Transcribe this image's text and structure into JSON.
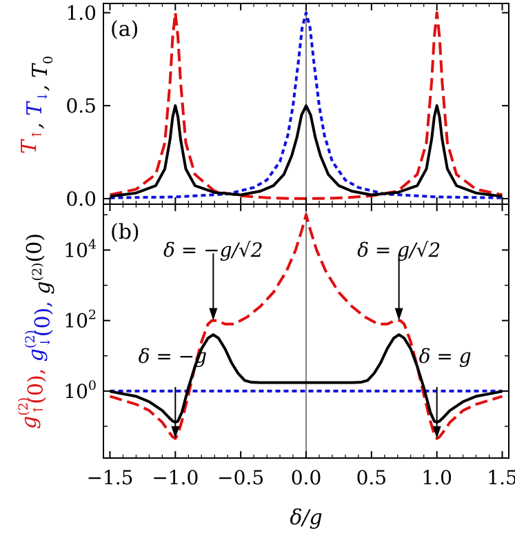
{
  "chart_data": [
    {
      "panel": "a",
      "type": "line",
      "panel_label": "(a)",
      "ylabel_parts": [
        {
          "text": "T",
          "sub": "↑",
          "color": "#e01010"
        },
        {
          "text": ", ",
          "sub": "",
          "color": "#000000"
        },
        {
          "text": "T",
          "sub": "↓",
          "color": "#1010e0"
        },
        {
          "text": ", ",
          "sub": "",
          "color": "#000000"
        },
        {
          "text": "T",
          "sub": "0",
          "color": "#000000"
        }
      ],
      "xlim": [
        -1.55,
        1.55
      ],
      "ylim": [
        -0.03,
        1.05
      ],
      "yscale": "linear",
      "yticks": [
        0.0,
        0.5,
        1.0
      ],
      "ytick_labels": [
        "0.0",
        "0.5",
        "1.0"
      ],
      "series": [
        {
          "color": "#e01010",
          "dash": "dashed",
          "x": [
            -1.5,
            -1.3,
            -1.15,
            -1.08,
            -1.04,
            -1.02,
            -1.0,
            -0.98,
            -0.96,
            -0.92,
            -0.85,
            -0.7,
            -0.5,
            -0.3,
            -0.15,
            0.0,
            0.15,
            0.3,
            0.5,
            0.7,
            0.85,
            0.92,
            0.96,
            0.98,
            1.0,
            1.02,
            1.04,
            1.08,
            1.15,
            1.3,
            1.5
          ],
          "y": [
            0.02,
            0.05,
            0.13,
            0.3,
            0.63,
            0.87,
            1.0,
            0.87,
            0.63,
            0.3,
            0.13,
            0.04,
            0.015,
            0.005,
            0.001,
            0.0,
            0.001,
            0.005,
            0.015,
            0.04,
            0.13,
            0.3,
            0.63,
            0.87,
            1.0,
            0.87,
            0.63,
            0.3,
            0.13,
            0.05,
            0.02
          ]
        },
        {
          "color": "#1010e0",
          "dash": "dotted",
          "x": [
            -1.5,
            -1.0,
            -0.6,
            -0.4,
            -0.3,
            -0.2,
            -0.14,
            -0.1,
            -0.06,
            -0.03,
            0.0,
            0.03,
            0.06,
            0.1,
            0.14,
            0.2,
            0.3,
            0.4,
            0.6,
            1.0,
            1.5
          ],
          "y": [
            0.004,
            0.009,
            0.025,
            0.06,
            0.1,
            0.2,
            0.34,
            0.5,
            0.73,
            0.92,
            1.0,
            0.92,
            0.73,
            0.5,
            0.34,
            0.2,
            0.1,
            0.06,
            0.025,
            0.009,
            0.004
          ]
        },
        {
          "color": "#000000",
          "dash": "solid",
          "x": [
            -1.5,
            -1.3,
            -1.15,
            -1.08,
            -1.04,
            -1.02,
            -1.0,
            -0.98,
            -0.96,
            -0.92,
            -0.85,
            -0.7,
            -0.5,
            -0.35,
            -0.25,
            -0.17,
            -0.11,
            -0.07,
            -0.035,
            0.0,
            0.035,
            0.07,
            0.11,
            0.17,
            0.25,
            0.35,
            0.5,
            0.7,
            0.85,
            0.92,
            0.96,
            0.98,
            1.0,
            1.02,
            1.04,
            1.08,
            1.15,
            1.3,
            1.5
          ],
          "y": [
            0.012,
            0.03,
            0.07,
            0.16,
            0.32,
            0.44,
            0.5,
            0.44,
            0.32,
            0.16,
            0.07,
            0.033,
            0.02,
            0.04,
            0.07,
            0.13,
            0.23,
            0.33,
            0.45,
            0.5,
            0.45,
            0.33,
            0.23,
            0.13,
            0.07,
            0.04,
            0.02,
            0.033,
            0.07,
            0.16,
            0.32,
            0.44,
            0.5,
            0.44,
            0.32,
            0.16,
            0.07,
            0.03,
            0.012
          ]
        }
      ]
    },
    {
      "panel": "b",
      "type": "line",
      "panel_label": "(b)",
      "ylabel_parts": [
        {
          "text": "g",
          "sup": "(2)",
          "sub": "↑",
          "tail": "(0), ",
          "color": "#e01010"
        },
        {
          "text": "g",
          "sup": "(2)",
          "sub": "↓",
          "tail": "(0), ",
          "color": "#1010e0"
        },
        {
          "text": "g",
          "sup": "(2)",
          "sub": "",
          "tail": "(0)",
          "color": "#000000"
        }
      ],
      "xlim": [
        -1.55,
        1.55
      ],
      "ylim_log10": [
        -1.9,
        5.3
      ],
      "yscale": "log",
      "yticks": [
        1,
        100,
        10000
      ],
      "ytick_labels": [
        {
          "base": "10",
          "exp": "0"
        },
        {
          "base": "10",
          "exp": "2"
        },
        {
          "base": "10",
          "exp": "4"
        }
      ],
      "series": [
        {
          "color": "#e01010",
          "dash": "dashed",
          "x": [
            -1.5,
            -1.3,
            -1.2,
            -1.1,
            -1.05,
            -1.02,
            -1.0,
            -0.98,
            -0.95,
            -0.9,
            -0.85,
            -0.8,
            -0.75,
            -0.72,
            -0.68,
            -0.62,
            -0.55,
            -0.45,
            -0.35,
            -0.25,
            -0.15,
            -0.08,
            -0.03,
            0.0,
            0.03,
            0.08,
            0.15,
            0.25,
            0.35,
            0.45,
            0.55,
            0.62,
            0.68,
            0.72,
            0.75,
            0.8,
            0.85,
            0.9,
            0.95,
            0.98,
            1.0,
            1.02,
            1.05,
            1.1,
            1.2,
            1.3,
            1.5
          ],
          "y": [
            0.71,
            0.42,
            0.28,
            0.13,
            0.07,
            0.05,
            0.045,
            0.06,
            0.14,
            0.79,
            5.0,
            25.1,
            79.4,
            100,
            100,
            79.4,
            79.4,
            126,
            251,
            631,
            2512,
            10000,
            39811,
            100000,
            39811,
            10000,
            2512,
            631,
            251,
            126,
            79.4,
            79.4,
            100,
            100,
            79.4,
            25.1,
            5.0,
            0.79,
            0.14,
            0.06,
            0.045,
            0.05,
            0.07,
            0.13,
            0.28,
            0.42,
            0.71
          ]
        },
        {
          "color": "#1010e0",
          "dash": "dotted",
          "x": [
            -1.5,
            1.5
          ],
          "y": [
            1.0,
            1.0
          ]
        },
        {
          "color": "#000000",
          "dash": "solid",
          "x": [
            -1.5,
            -1.3,
            -1.2,
            -1.1,
            -1.05,
            -1.02,
            -1.0,
            -0.98,
            -0.95,
            -0.9,
            -0.85,
            -0.8,
            -0.75,
            -0.71,
            -0.67,
            -0.62,
            -0.57,
            -0.52,
            -0.47,
            -0.42,
            -0.35,
            -0.2,
            0.0,
            0.2,
            0.35,
            0.42,
            0.47,
            0.52,
            0.57,
            0.62,
            0.67,
            0.71,
            0.75,
            0.8,
            0.85,
            0.9,
            0.95,
            0.98,
            1.0,
            1.02,
            1.05,
            1.1,
            1.2,
            1.3,
            1.5
          ],
          "y": [
            0.98,
            0.71,
            0.5,
            0.28,
            0.18,
            0.14,
            0.13,
            0.14,
            0.25,
            1.26,
            5.0,
            15.8,
            31.6,
            39.8,
            31.6,
            15.8,
            6.3,
            3.16,
            2.0,
            1.78,
            1.74,
            1.74,
            1.74,
            1.74,
            1.74,
            1.78,
            2.0,
            3.16,
            6.3,
            15.8,
            31.6,
            39.8,
            31.6,
            15.8,
            5.0,
            1.26,
            0.25,
            0.14,
            0.13,
            0.14,
            0.18,
            0.28,
            0.5,
            0.71,
            0.98
          ]
        }
      ],
      "annotations": [
        {
          "label": "δ = −g/√2",
          "x": -0.71,
          "y_arrow_tip": 100,
          "y_arrow_tail": 8000
        },
        {
          "label": "δ = g/√2",
          "x": 0.71,
          "y_arrow_tip": 100,
          "y_arrow_tail": 8000
        },
        {
          "label": "δ = −g",
          "x": -1.0,
          "y_arrow_tip": 0.045,
          "y_arrow_tail": 1.3
        },
        {
          "label": "δ = g",
          "x": 1.0,
          "y_arrow_tip": 0.045,
          "y_arrow_tail": 1.3
        }
      ]
    }
  ],
  "shared_x": {
    "xlabel": "δ/g",
    "xticks": [
      -1.5,
      -1.0,
      -0.5,
      0.0,
      0.5,
      1.0,
      1.5
    ],
    "xtick_labels": [
      "−1.5",
      "−1.0",
      "−0.5",
      "0.0",
      "0.5",
      "1.0",
      "1.5"
    ]
  }
}
